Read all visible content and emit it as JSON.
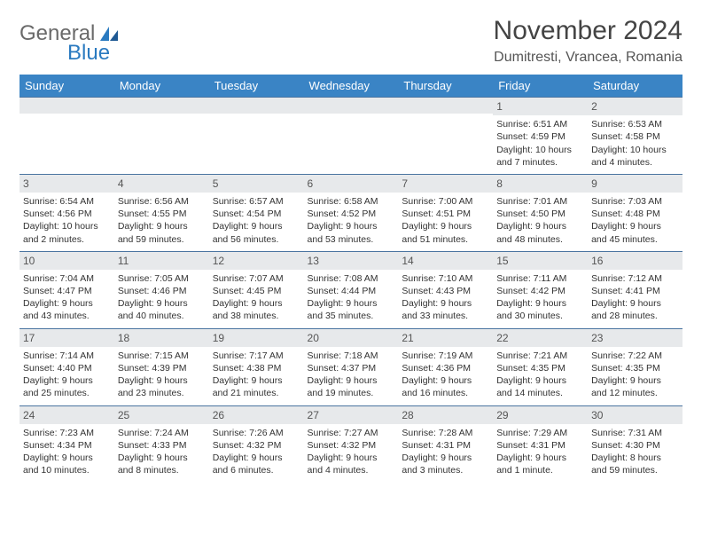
{
  "logo": {
    "text1": "General",
    "text2": "Blue"
  },
  "title": "November 2024",
  "location": "Dumitresti, Vrancea, Romania",
  "colors": {
    "header_bg": "#3a84c5",
    "daynum_bg": "#e7e9eb",
    "row_border": "#4a74a0",
    "logo_gray": "#6a6a6a",
    "logo_blue": "#2a7ac0"
  },
  "weekdays": [
    "Sunday",
    "Monday",
    "Tuesday",
    "Wednesday",
    "Thursday",
    "Friday",
    "Saturday"
  ],
  "weeks": [
    [
      {
        "blank": true
      },
      {
        "blank": true
      },
      {
        "blank": true
      },
      {
        "blank": true
      },
      {
        "blank": true
      },
      {
        "day": "1",
        "sunrise": "Sunrise: 6:51 AM",
        "sunset": "Sunset: 4:59 PM",
        "daylight": "Daylight: 10 hours and 7 minutes."
      },
      {
        "day": "2",
        "sunrise": "Sunrise: 6:53 AM",
        "sunset": "Sunset: 4:58 PM",
        "daylight": "Daylight: 10 hours and 4 minutes."
      }
    ],
    [
      {
        "day": "3",
        "sunrise": "Sunrise: 6:54 AM",
        "sunset": "Sunset: 4:56 PM",
        "daylight": "Daylight: 10 hours and 2 minutes."
      },
      {
        "day": "4",
        "sunrise": "Sunrise: 6:56 AM",
        "sunset": "Sunset: 4:55 PM",
        "daylight": "Daylight: 9 hours and 59 minutes."
      },
      {
        "day": "5",
        "sunrise": "Sunrise: 6:57 AM",
        "sunset": "Sunset: 4:54 PM",
        "daylight": "Daylight: 9 hours and 56 minutes."
      },
      {
        "day": "6",
        "sunrise": "Sunrise: 6:58 AM",
        "sunset": "Sunset: 4:52 PM",
        "daylight": "Daylight: 9 hours and 53 minutes."
      },
      {
        "day": "7",
        "sunrise": "Sunrise: 7:00 AM",
        "sunset": "Sunset: 4:51 PM",
        "daylight": "Daylight: 9 hours and 51 minutes."
      },
      {
        "day": "8",
        "sunrise": "Sunrise: 7:01 AM",
        "sunset": "Sunset: 4:50 PM",
        "daylight": "Daylight: 9 hours and 48 minutes."
      },
      {
        "day": "9",
        "sunrise": "Sunrise: 7:03 AM",
        "sunset": "Sunset: 4:48 PM",
        "daylight": "Daylight: 9 hours and 45 minutes."
      }
    ],
    [
      {
        "day": "10",
        "sunrise": "Sunrise: 7:04 AM",
        "sunset": "Sunset: 4:47 PM",
        "daylight": "Daylight: 9 hours and 43 minutes."
      },
      {
        "day": "11",
        "sunrise": "Sunrise: 7:05 AM",
        "sunset": "Sunset: 4:46 PM",
        "daylight": "Daylight: 9 hours and 40 minutes."
      },
      {
        "day": "12",
        "sunrise": "Sunrise: 7:07 AM",
        "sunset": "Sunset: 4:45 PM",
        "daylight": "Daylight: 9 hours and 38 minutes."
      },
      {
        "day": "13",
        "sunrise": "Sunrise: 7:08 AM",
        "sunset": "Sunset: 4:44 PM",
        "daylight": "Daylight: 9 hours and 35 minutes."
      },
      {
        "day": "14",
        "sunrise": "Sunrise: 7:10 AM",
        "sunset": "Sunset: 4:43 PM",
        "daylight": "Daylight: 9 hours and 33 minutes."
      },
      {
        "day": "15",
        "sunrise": "Sunrise: 7:11 AM",
        "sunset": "Sunset: 4:42 PM",
        "daylight": "Daylight: 9 hours and 30 minutes."
      },
      {
        "day": "16",
        "sunrise": "Sunrise: 7:12 AM",
        "sunset": "Sunset: 4:41 PM",
        "daylight": "Daylight: 9 hours and 28 minutes."
      }
    ],
    [
      {
        "day": "17",
        "sunrise": "Sunrise: 7:14 AM",
        "sunset": "Sunset: 4:40 PM",
        "daylight": "Daylight: 9 hours and 25 minutes."
      },
      {
        "day": "18",
        "sunrise": "Sunrise: 7:15 AM",
        "sunset": "Sunset: 4:39 PM",
        "daylight": "Daylight: 9 hours and 23 minutes."
      },
      {
        "day": "19",
        "sunrise": "Sunrise: 7:17 AM",
        "sunset": "Sunset: 4:38 PM",
        "daylight": "Daylight: 9 hours and 21 minutes."
      },
      {
        "day": "20",
        "sunrise": "Sunrise: 7:18 AM",
        "sunset": "Sunset: 4:37 PM",
        "daylight": "Daylight: 9 hours and 19 minutes."
      },
      {
        "day": "21",
        "sunrise": "Sunrise: 7:19 AM",
        "sunset": "Sunset: 4:36 PM",
        "daylight": "Daylight: 9 hours and 16 minutes."
      },
      {
        "day": "22",
        "sunrise": "Sunrise: 7:21 AM",
        "sunset": "Sunset: 4:35 PM",
        "daylight": "Daylight: 9 hours and 14 minutes."
      },
      {
        "day": "23",
        "sunrise": "Sunrise: 7:22 AM",
        "sunset": "Sunset: 4:35 PM",
        "daylight": "Daylight: 9 hours and 12 minutes."
      }
    ],
    [
      {
        "day": "24",
        "sunrise": "Sunrise: 7:23 AM",
        "sunset": "Sunset: 4:34 PM",
        "daylight": "Daylight: 9 hours and 10 minutes."
      },
      {
        "day": "25",
        "sunrise": "Sunrise: 7:24 AM",
        "sunset": "Sunset: 4:33 PM",
        "daylight": "Daylight: 9 hours and 8 minutes."
      },
      {
        "day": "26",
        "sunrise": "Sunrise: 7:26 AM",
        "sunset": "Sunset: 4:32 PM",
        "daylight": "Daylight: 9 hours and 6 minutes."
      },
      {
        "day": "27",
        "sunrise": "Sunrise: 7:27 AM",
        "sunset": "Sunset: 4:32 PM",
        "daylight": "Daylight: 9 hours and 4 minutes."
      },
      {
        "day": "28",
        "sunrise": "Sunrise: 7:28 AM",
        "sunset": "Sunset: 4:31 PM",
        "daylight": "Daylight: 9 hours and 3 minutes."
      },
      {
        "day": "29",
        "sunrise": "Sunrise: 7:29 AM",
        "sunset": "Sunset: 4:31 PM",
        "daylight": "Daylight: 9 hours and 1 minute."
      },
      {
        "day": "30",
        "sunrise": "Sunrise: 7:31 AM",
        "sunset": "Sunset: 4:30 PM",
        "daylight": "Daylight: 8 hours and 59 minutes."
      }
    ]
  ]
}
